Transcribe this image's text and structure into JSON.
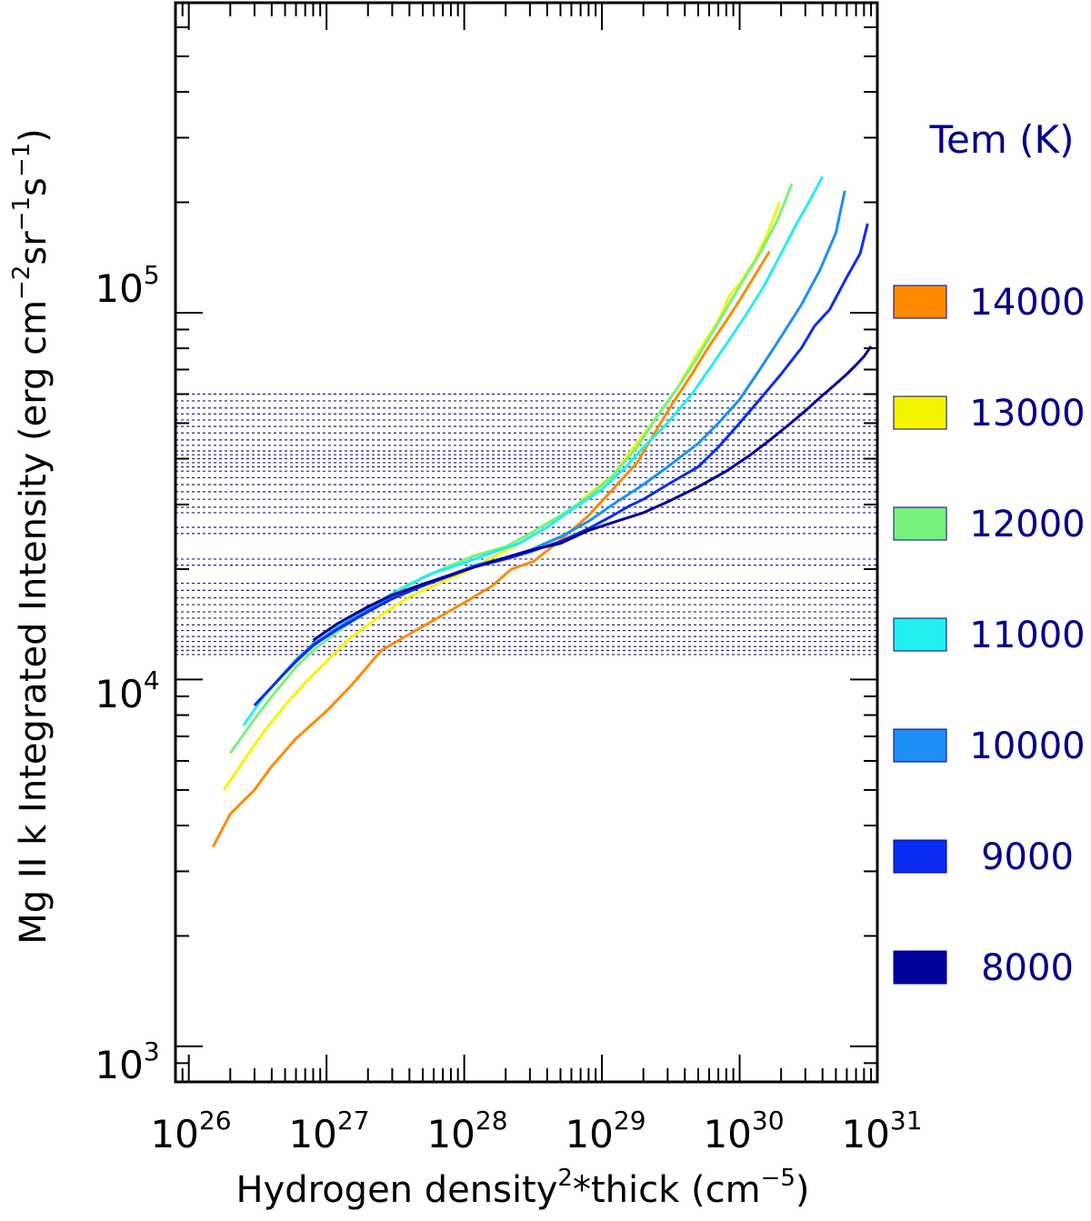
{
  "chart_data": {
    "type": "line",
    "xscale": "log",
    "yscale": "log",
    "xlim": [
      8e+25,
      1e+31
    ],
    "ylim": [
      800,
      700000
    ],
    "xlabel": "Hydrogen density",
    "xlabel_sup": "2",
    "xlabel_mid": "*thick (cm",
    "xlabel_unit_sup": "−5",
    "xlabel_end": ")",
    "ylabel": "Mg II k Integrated Intensity (erg cm",
    "ylabel_sup1": "−2",
    "ylabel_mid1": "sr",
    "ylabel_sup2": "−1",
    "ylabel_mid2": "s",
    "ylabel_sup3": "−1",
    "ylabel_end": ")",
    "x_ticks": [
      {
        "base": "10",
        "exp": "26",
        "value": 1e+26
      },
      {
        "base": "10",
        "exp": "27",
        "value": 1e+27
      },
      {
        "base": "10",
        "exp": "28",
        "value": 1e+28
      },
      {
        "base": "10",
        "exp": "29",
        "value": 1e+29
      },
      {
        "base": "10",
        "exp": "30",
        "value": 1e+30
      },
      {
        "base": "10",
        "exp": "31",
        "value": 1e+31
      }
    ],
    "y_ticks": [
      {
        "base": "10",
        "exp": "3",
        "value": 1000
      },
      {
        "base": "10",
        "exp": "4",
        "value": 10000
      },
      {
        "base": "10",
        "exp": "5",
        "value": 100000
      }
    ],
    "legend_title": "Tem (K)",
    "legend_position": "right",
    "hlines": [
      11700,
      12000,
      12300,
      12700,
      13100,
      13600,
      14100,
      14700,
      15300,
      16000,
      16700,
      17500,
      18300,
      20500,
      21300,
      25000,
      26000,
      28500,
      29500,
      31000,
      32500,
      34000,
      35500,
      37000,
      38000,
      39000,
      40000,
      41000,
      42000,
      43500,
      45000,
      47000,
      49000,
      51000,
      53000,
      55000,
      57500,
      60000
    ],
    "series": [
      {
        "name": "14000",
        "color": "#ff8a00",
        "x": [
          1.5e+26,
          2e+26,
          3e+26,
          4e+26,
          6e+26,
          1e+27,
          1.5e+27,
          2.5e+27,
          4e+27,
          7e+27,
          1e+28,
          1.6e+28,
          2.2e+28,
          3.2e+28,
          5e+28,
          8e+28,
          1.2e+29,
          1.8e+29,
          2.5e+29,
          3.2e+29,
          4.5e+29,
          6e+29,
          8e+29,
          1e+30,
          1.3e+30,
          1.65e+30
        ],
        "y": [
          3500,
          4300,
          5000,
          5800,
          6900,
          8200,
          9600,
          12000,
          13300,
          15000,
          16200,
          18000,
          20000,
          21000,
          24000,
          28000,
          33000,
          39000,
          48000,
          56000,
          68000,
          81000,
          95000,
          108000,
          127000,
          147000
        ]
      },
      {
        "name": "13000",
        "color": "#f5f500",
        "x": [
          1.8e+26,
          2.5e+26,
          3.5e+26,
          5e+26,
          7e+26,
          1e+27,
          1.5e+27,
          2.5e+27,
          4e+27,
          7e+27,
          1e+28,
          1.6e+28,
          2.5e+28,
          4e+28,
          6e+28,
          8e+28,
          1.2e+29,
          1.7e+29,
          2.5e+29,
          3.5e+29,
          5e+29,
          7e+29,
          8.5e+29,
          1e+30,
          1.3e+30,
          1.6e+30,
          1.95e+30
        ],
        "y": [
          5000,
          6000,
          7200,
          8500,
          9800,
          11200,
          13000,
          15000,
          16800,
          18500,
          19600,
          21500,
          23500,
          26000,
          29000,
          32000,
          36000,
          43000,
          52000,
          62000,
          78000,
          95000,
          112000,
          120000,
          140000,
          165000,
          200000
        ]
      },
      {
        "name": "12000",
        "color": "#77f27a",
        "x": [
          2e+26,
          3e+26,
          4e+26,
          6e+26,
          8e+26,
          1.2e+27,
          2e+27,
          3e+27,
          5e+27,
          8e+27,
          1.2e+28,
          2e+28,
          3e+28,
          5e+28,
          8e+28,
          1.2e+29,
          1.8e+29,
          2.5e+29,
          3.5e+29,
          5e+29,
          7e+29,
          1e+30,
          1.4e+30,
          1.9e+30,
          2.4e+30
        ],
        "y": [
          6300,
          7800,
          9000,
          10800,
          12000,
          13500,
          15500,
          17000,
          19000,
          20500,
          21800,
          23000,
          25000,
          28000,
          31500,
          36000,
          43000,
          52000,
          62000,
          76000,
          94000,
          118000,
          145000,
          180000,
          225000
        ]
      },
      {
        "name": "11000",
        "color": "#22eef0",
        "x": [
          2.5e+26,
          3.5e+26,
          5e+26,
          7e+26,
          1e+27,
          1.5e+27,
          2.5e+27,
          4e+27,
          6e+27,
          1e+28,
          1.5e+28,
          2.5e+28,
          4e+28,
          6e+28,
          1e+29,
          1.5e+29,
          2e+29,
          3e+29,
          4.5e+29,
          6e+29,
          8e+29,
          1.1e+30,
          1.5e+30,
          2e+30,
          2.6e+30,
          3.3e+30,
          4e+30
        ],
        "y": [
          7500,
          9000,
          10500,
          11800,
          13200,
          14800,
          16500,
          18200,
          19500,
          20800,
          22000,
          23500,
          26000,
          29000,
          33000,
          38000,
          43000,
          50000,
          60000,
          70000,
          82000,
          98000,
          118000,
          145000,
          175000,
          205000,
          235000
        ]
      },
      {
        "name": "10000",
        "color": "#1e8ff5",
        "x": [
          3e+26,
          4.5e+26,
          6e+26,
          8e+26,
          1.2e+27,
          2e+27,
          3e+27,
          5e+27,
          8e+27,
          1.2e+28,
          2e+28,
          3e+28,
          5e+28,
          8e+28,
          1.2e+29,
          2e+29,
          3e+29,
          5e+29,
          7e+29,
          1e+30,
          1.4e+30,
          2e+30,
          2.8e+30,
          3.8e+30,
          5e+30,
          5.8e+30
        ],
        "y": [
          8500,
          10000,
          11300,
          12500,
          13800,
          15500,
          16800,
          18200,
          19300,
          20500,
          21500,
          22500,
          24500,
          27000,
          30000,
          34000,
          38000,
          44000,
          50000,
          58000,
          70000,
          86000,
          105000,
          130000,
          165000,
          215000
        ]
      },
      {
        "name": "9000",
        "color": "#0a2cf0",
        "x": [
          3e+26,
          4.5e+26,
          6e+26,
          8e+26,
          1.2e+27,
          2e+27,
          3e+27,
          5e+27,
          8e+27,
          1.2e+28,
          2e+28,
          3e+28,
          5e+28,
          8e+28,
          1.2e+29,
          1.6e+29,
          2e+29,
          3e+29,
          5e+29,
          7e+29,
          1e+30,
          1.4e+30,
          2e+30,
          2.8e+30,
          3.5e+30,
          4.5e+30,
          6e+30,
          7.5e+30,
          8.5e+30
        ],
        "y": [
          8500,
          10000,
          11200,
          12400,
          13700,
          15300,
          16600,
          18000,
          19200,
          20300,
          21300,
          22300,
          23800,
          25800,
          28000,
          29800,
          31000,
          34000,
          38000,
          43000,
          50000,
          58000,
          68000,
          80000,
          92000,
          102000,
          125000,
          145000,
          175000
        ]
      },
      {
        "name": "8000",
        "color": "#00009a",
        "x": [
          8e+26,
          1.2e+27,
          2e+27,
          3e+27,
          5e+27,
          8e+27,
          1.2e+28,
          2e+28,
          3e+28,
          5e+28,
          8e+28,
          1.2e+29,
          2e+29,
          3e+29,
          5e+29,
          8e+29,
          1.2e+30,
          1.6e+30,
          2.2e+30,
          3e+30,
          4e+30,
          5e+30,
          6e+30,
          7e+30,
          8e+30,
          9e+30
        ],
        "y": [
          12800,
          14200,
          15800,
          17000,
          18200,
          19300,
          20300,
          21500,
          22500,
          23500,
          25500,
          26800,
          28500,
          30500,
          33500,
          37000,
          41000,
          44500,
          49000,
          54000,
          59500,
          64000,
          68000,
          72000,
          76000,
          81000
        ]
      }
    ]
  }
}
